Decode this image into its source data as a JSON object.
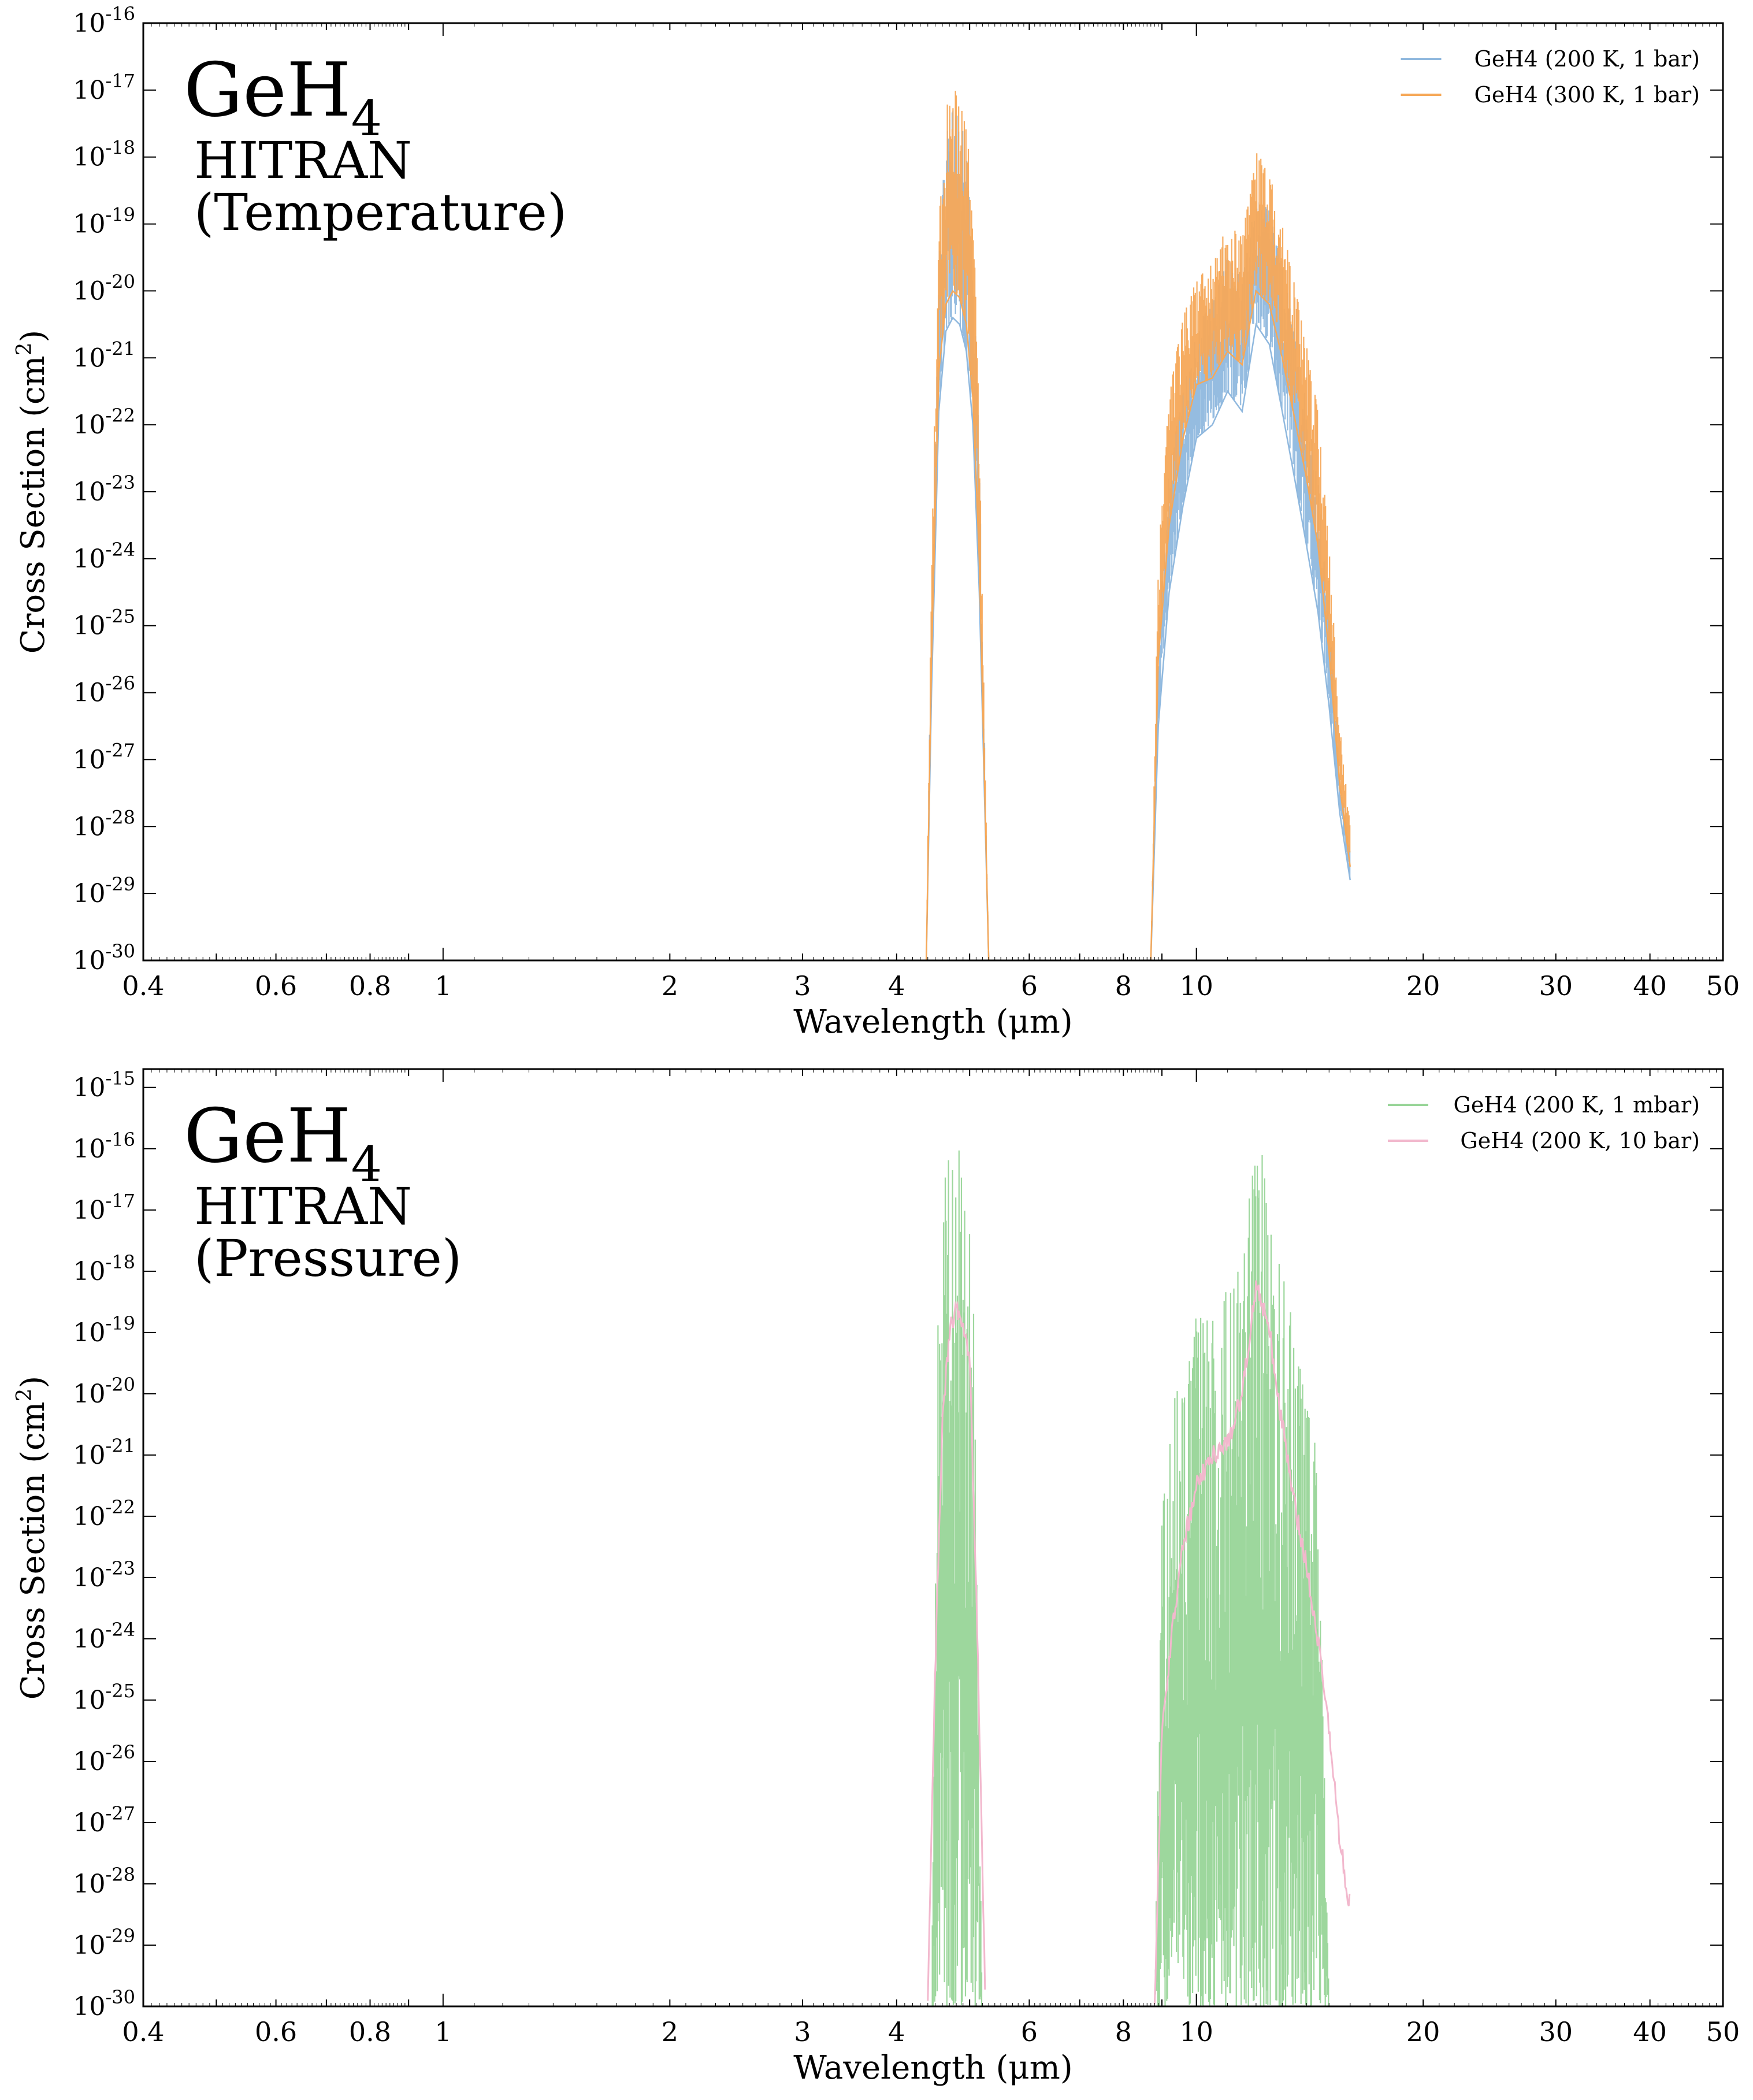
{
  "chart_data": [
    {
      "type": "line",
      "id": "temperature",
      "title": "GeH",
      "title_subscript": "4",
      "subtitle_lines": [
        "HITRAN",
        "(Temperature)"
      ],
      "xlabel": "Wavelength (μm)",
      "ylabel_main": "Cross Section (cm",
      "ylabel_sup": "2",
      "ylabel_close": ")",
      "x_scale": "log",
      "y_scale": "log",
      "xlim": [
        0.4,
        50
      ],
      "ylim_exponents": [
        -30,
        -16
      ],
      "x_ticks": [
        {
          "value": 0.4,
          "label": "0.4"
        },
        {
          "value": 0.6,
          "label": "0.6"
        },
        {
          "value": 0.8,
          "label": "0.8"
        },
        {
          "value": 1,
          "label": "1"
        },
        {
          "value": 2,
          "label": "2"
        },
        {
          "value": 3,
          "label": "3"
        },
        {
          "value": 4,
          "label": "4"
        },
        {
          "value": 6,
          "label": "6"
        },
        {
          "value": 8,
          "label": "8"
        },
        {
          "value": 10,
          "label": "10"
        },
        {
          "value": 20,
          "label": "20"
        },
        {
          "value": 30,
          "label": "30"
        },
        {
          "value": 40,
          "label": "40"
        },
        {
          "value": 50,
          "label": "50"
        }
      ],
      "y_ticks": [
        {
          "exp": -30,
          "base": "10",
          "sup": "-30"
        },
        {
          "exp": -29,
          "base": "10",
          "sup": "-29"
        },
        {
          "exp": -28,
          "base": "10",
          "sup": "-28"
        },
        {
          "exp": -27,
          "base": "10",
          "sup": "-27"
        },
        {
          "exp": -26,
          "base": "10",
          "sup": "-26"
        },
        {
          "exp": -25,
          "base": "10",
          "sup": "-25"
        },
        {
          "exp": -24,
          "base": "10",
          "sup": "-24"
        },
        {
          "exp": -23,
          "base": "10",
          "sup": "-23"
        },
        {
          "exp": -22,
          "base": "10",
          "sup": "-22"
        },
        {
          "exp": -21,
          "base": "10",
          "sup": "-21"
        },
        {
          "exp": -20,
          "base": "10",
          "sup": "-20"
        },
        {
          "exp": -19,
          "base": "10",
          "sup": "-19"
        },
        {
          "exp": -18,
          "base": "10",
          "sup": "-18"
        },
        {
          "exp": -17,
          "base": "10",
          "sup": "-17"
        },
        {
          "exp": -16,
          "base": "10",
          "sup": "-16"
        }
      ],
      "legend_position": "top-right",
      "series": [
        {
          "name": "GeH4 (200 K, 1 bar)",
          "color": "#8fb8de",
          "envelope": {
            "x": [
              4.38,
              4.45,
              4.55,
              4.65,
              4.75,
              4.85,
              4.95,
              5.05,
              5.15,
              5.3
            ],
            "log_upper": [
              -30,
              -24.5,
              -19.5,
              -17.6,
              -17.3,
              -17.4,
              -17.8,
              -19,
              -22.5,
              -30
            ],
            "log_lower": [
              -30,
              -26,
              -21.8,
              -20.6,
              -20.4,
              -20.5,
              -20.9,
              -22,
              -24.5,
              -30
            ],
            "x2": [
              8.7,
              8.9,
              9.2,
              9.6,
              10.0,
              10.5,
              11.0,
              11.5,
              12.0,
              12.5,
              13.0,
              13.5,
              14.0,
              14.5,
              15.0,
              15.5,
              16.0
            ],
            "log_upper2": [
              -30,
              -25,
              -22.6,
              -21.5,
              -20.5,
              -20.2,
              -19.5,
              -19.8,
              -18.6,
              -18.8,
              -19.6,
              -20.6,
              -21.6,
              -22.8,
              -24.8,
              -27.2,
              -28.4
            ],
            "log_lower2": [
              -30,
              -26.5,
              -24.5,
              -23.2,
              -22.2,
              -22.0,
              -21.5,
              -21.8,
              -20.5,
              -20.8,
              -21.8,
              -22.8,
              -23.8,
              -24.8,
              -26.2,
              -27.8,
              -28.8
            ]
          }
        },
        {
          "name": "GeH4 (300 K, 1 bar)",
          "color": "#f6a858",
          "envelope": {
            "x": [
              4.38,
              4.45,
              4.55,
              4.65,
              4.75,
              4.85,
              4.95,
              5.05,
              5.15,
              5.3
            ],
            "log_upper": [
              -30,
              -24,
              -19,
              -17.3,
              -16.9,
              -17.1,
              -17.5,
              -18.6,
              -22,
              -30
            ],
            "log_lower": [
              -30,
              -25.5,
              -21.2,
              -20.2,
              -20.0,
              -20.1,
              -20.5,
              -21.6,
              -24,
              -30
            ],
            "x2": [
              8.7,
              8.9,
              9.2,
              9.6,
              10.0,
              10.5,
              11.0,
              11.5,
              12.0,
              12.5,
              13.0,
              13.5,
              14.0,
              14.5,
              15.0,
              15.5,
              16.0
            ],
            "log_upper2": [
              -30,
              -24,
              -21.5,
              -20.4,
              -19.8,
              -19.6,
              -19.0,
              -19.2,
              -17.9,
              -18.2,
              -19.0,
              -19.9,
              -20.8,
              -21.8,
              -23.8,
              -26.5,
              -28.0
            ],
            "log_lower2": [
              -30,
              -25.5,
              -23.5,
              -22.2,
              -21.4,
              -21.3,
              -20.9,
              -21.1,
              -20.0,
              -20.2,
              -21.0,
              -21.9,
              -22.8,
              -23.8,
              -25.4,
              -27.4,
              -28.6
            ]
          }
        }
      ]
    },
    {
      "type": "line",
      "id": "pressure",
      "title": "GeH",
      "title_subscript": "4",
      "subtitle_lines": [
        "HITRAN",
        "(Pressure)"
      ],
      "xlabel": "Wavelength (μm)",
      "ylabel_main": "Cross Section (cm",
      "ylabel_sup": "2",
      "ylabel_close": ")",
      "x_scale": "log",
      "y_scale": "log",
      "xlim": [
        0.4,
        50
      ],
      "ylim_exponents": [
        -30,
        -14.7
      ],
      "x_ticks": [
        {
          "value": 0.4,
          "label": "0.4"
        },
        {
          "value": 0.6,
          "label": "0.6"
        },
        {
          "value": 0.8,
          "label": "0.8"
        },
        {
          "value": 1,
          "label": "1"
        },
        {
          "value": 2,
          "label": "2"
        },
        {
          "value": 3,
          "label": "3"
        },
        {
          "value": 4,
          "label": "4"
        },
        {
          "value": 6,
          "label": "6"
        },
        {
          "value": 8,
          "label": "8"
        },
        {
          "value": 10,
          "label": "10"
        },
        {
          "value": 20,
          "label": "20"
        },
        {
          "value": 30,
          "label": "30"
        },
        {
          "value": 40,
          "label": "40"
        },
        {
          "value": 50,
          "label": "50"
        }
      ],
      "y_ticks": [
        {
          "exp": -30,
          "base": "10",
          "sup": "-30"
        },
        {
          "exp": -29,
          "base": "10",
          "sup": "-29"
        },
        {
          "exp": -28,
          "base": "10",
          "sup": "-28"
        },
        {
          "exp": -27,
          "base": "10",
          "sup": "-27"
        },
        {
          "exp": -26,
          "base": "10",
          "sup": "-26"
        },
        {
          "exp": -25,
          "base": "10",
          "sup": "-25"
        },
        {
          "exp": -24,
          "base": "10",
          "sup": "-24"
        },
        {
          "exp": -23,
          "base": "10",
          "sup": "-23"
        },
        {
          "exp": -22,
          "base": "10",
          "sup": "-22"
        },
        {
          "exp": -21,
          "base": "10",
          "sup": "-21"
        },
        {
          "exp": -20,
          "base": "10",
          "sup": "-20"
        },
        {
          "exp": -19,
          "base": "10",
          "sup": "-19"
        },
        {
          "exp": -18,
          "base": "10",
          "sup": "-18"
        },
        {
          "exp": -17,
          "base": "10",
          "sup": "-17"
        },
        {
          "exp": -16,
          "base": "10",
          "sup": "-16"
        },
        {
          "exp": -15,
          "base": "10",
          "sup": "-15"
        }
      ],
      "legend_position": "top-right",
      "series": [
        {
          "name": "GeH4 (200 K, 1 mbar)",
          "color": "#98d598",
          "envelope": {
            "x": [
              4.45,
              4.55,
              4.65,
              4.75,
              4.85,
              4.95,
              5.05,
              5.2
            ],
            "log_upper": [
              -30,
              -17.5,
              -16.2,
              -15.8,
              -16.0,
              -16.3,
              -17.8,
              -30
            ],
            "log_lower": [
              -30,
              -30,
              -30,
              -30,
              -30,
              -30,
              -30,
              -30
            ],
            "x2": [
              8.8,
              9.0,
              9.3,
              9.6,
              10.0,
              10.5,
              11.0,
              11.5,
              12.0,
              12.5,
              13.0,
              13.5,
              14.0,
              14.5,
              15.0
            ],
            "log_upper2": [
              -30,
              -22,
              -20.2,
              -19.5,
              -18.6,
              -18.8,
              -18.2,
              -17.8,
              -15.5,
              -16.8,
              -18.0,
              -19.0,
              -20.2,
              -21.0,
              -30
            ],
            "log_lower2": [
              -30,
              -30,
              -30,
              -30,
              -30,
              -30,
              -30,
              -30,
              -30,
              -30,
              -30,
              -30,
              -30,
              -30,
              -30
            ]
          }
        },
        {
          "name": "GeH4 (200 K, 10 bar)",
          "color": "#f2b8cd",
          "line": {
            "x": [
              4.4,
              4.5,
              4.6,
              4.7,
              4.8,
              4.9,
              5.0,
              5.1,
              5.25,
              8.8,
              9.0,
              9.3,
              9.6,
              10.0,
              10.5,
              11.0,
              11.5,
              12.0,
              12.5,
              13.0,
              13.5,
              14.0,
              14.5,
              15.0,
              15.5,
              16.0
            ],
            "log": [
              -30,
              -24.5,
              -20.5,
              -19.0,
              -18.6,
              -19.0,
              -19.5,
              -23,
              -30,
              -30,
              -25.5,
              -23.8,
              -22.5,
              -21.5,
              -21.0,
              -20.8,
              -20.0,
              -18.2,
              -19.0,
              -20.5,
              -21.8,
              -22.8,
              -24.0,
              -25.5,
              -27.3,
              -28.4
            ]
          }
        }
      ]
    }
  ]
}
